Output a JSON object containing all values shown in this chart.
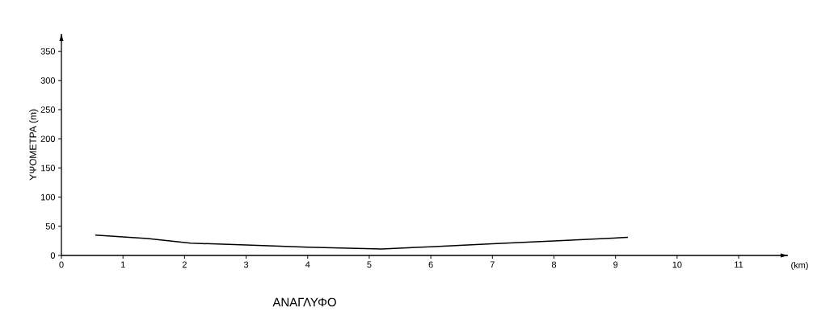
{
  "chart_data": {
    "type": "line",
    "title": "ΑΝΑΓΛΥΦΟ",
    "xlabel": "(km)",
    "ylabel": "ΥΨΟΜΕΤΡΑ (m)",
    "x": [
      0.55,
      1.4,
      2.1,
      3,
      4,
      5.2,
      6,
      7,
      8,
      9.2
    ],
    "values": [
      35,
      29,
      21,
      18,
      14,
      11,
      15,
      20,
      25,
      31
    ],
    "color": "#000000",
    "xlim": [
      0,
      11.8
    ],
    "ylim": [
      0,
      380
    ],
    "xticks": [
      0,
      1,
      2,
      3,
      4,
      5,
      6,
      7,
      8,
      9,
      10,
      11
    ],
    "yticks": [
      0,
      50,
      100,
      150,
      200,
      250,
      300,
      350
    ],
    "grid": false,
    "marker": "none",
    "line_style": "solid"
  }
}
